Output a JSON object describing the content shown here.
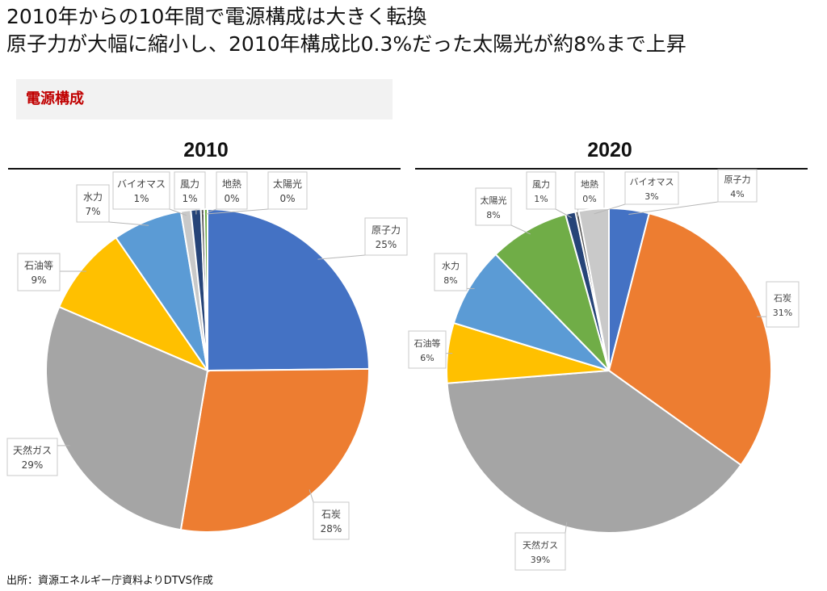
{
  "headline": {
    "line1": "2010年からの10年間で電源構成は大きく転換",
    "line2": "原子力が大幅に縮小し、2010年構成比0.3%だった太陽光が約8%まで上昇"
  },
  "section_label": "電源構成",
  "source": "出所：資源エネルギー庁資料よりDTVS作成",
  "colors": {
    "原子力": "#4472C4",
    "石炭": "#ED7D31",
    "天然ガス": "#A5A5A5",
    "石油等": "#FFC000",
    "水力": "#5B9BD5",
    "バイオマス": "#C9C9C9",
    "風力": "#264478",
    "地熱": "#595959",
    "太陽光": "#70AD47"
  },
  "chart_data": [
    {
      "type": "pie",
      "title": "2010",
      "labels": [
        "原子力",
        "石炭",
        "天然ガス",
        "石油等",
        "水力",
        "バイオマス",
        "風力",
        "地熱",
        "太陽光"
      ],
      "values": [
        25,
        28,
        29,
        9,
        7,
        1,
        1,
        0,
        0
      ],
      "value_labels": [
        "25%",
        "28%",
        "29%",
        "9%",
        "7%",
        "1%",
        "1%",
        "0%",
        "0%"
      ]
    },
    {
      "type": "pie",
      "title": "2020",
      "labels": [
        "原子力",
        "石炭",
        "天然ガス",
        "石油等",
        "水力",
        "太陽光",
        "風力",
        "地熱",
        "バイオマス"
      ],
      "values": [
        4,
        31,
        39,
        6,
        8,
        8,
        1,
        0,
        3
      ],
      "value_labels": [
        "4%",
        "31%",
        "39%",
        "6%",
        "8%",
        "8%",
        "1%",
        "0%",
        "3%"
      ]
    }
  ]
}
